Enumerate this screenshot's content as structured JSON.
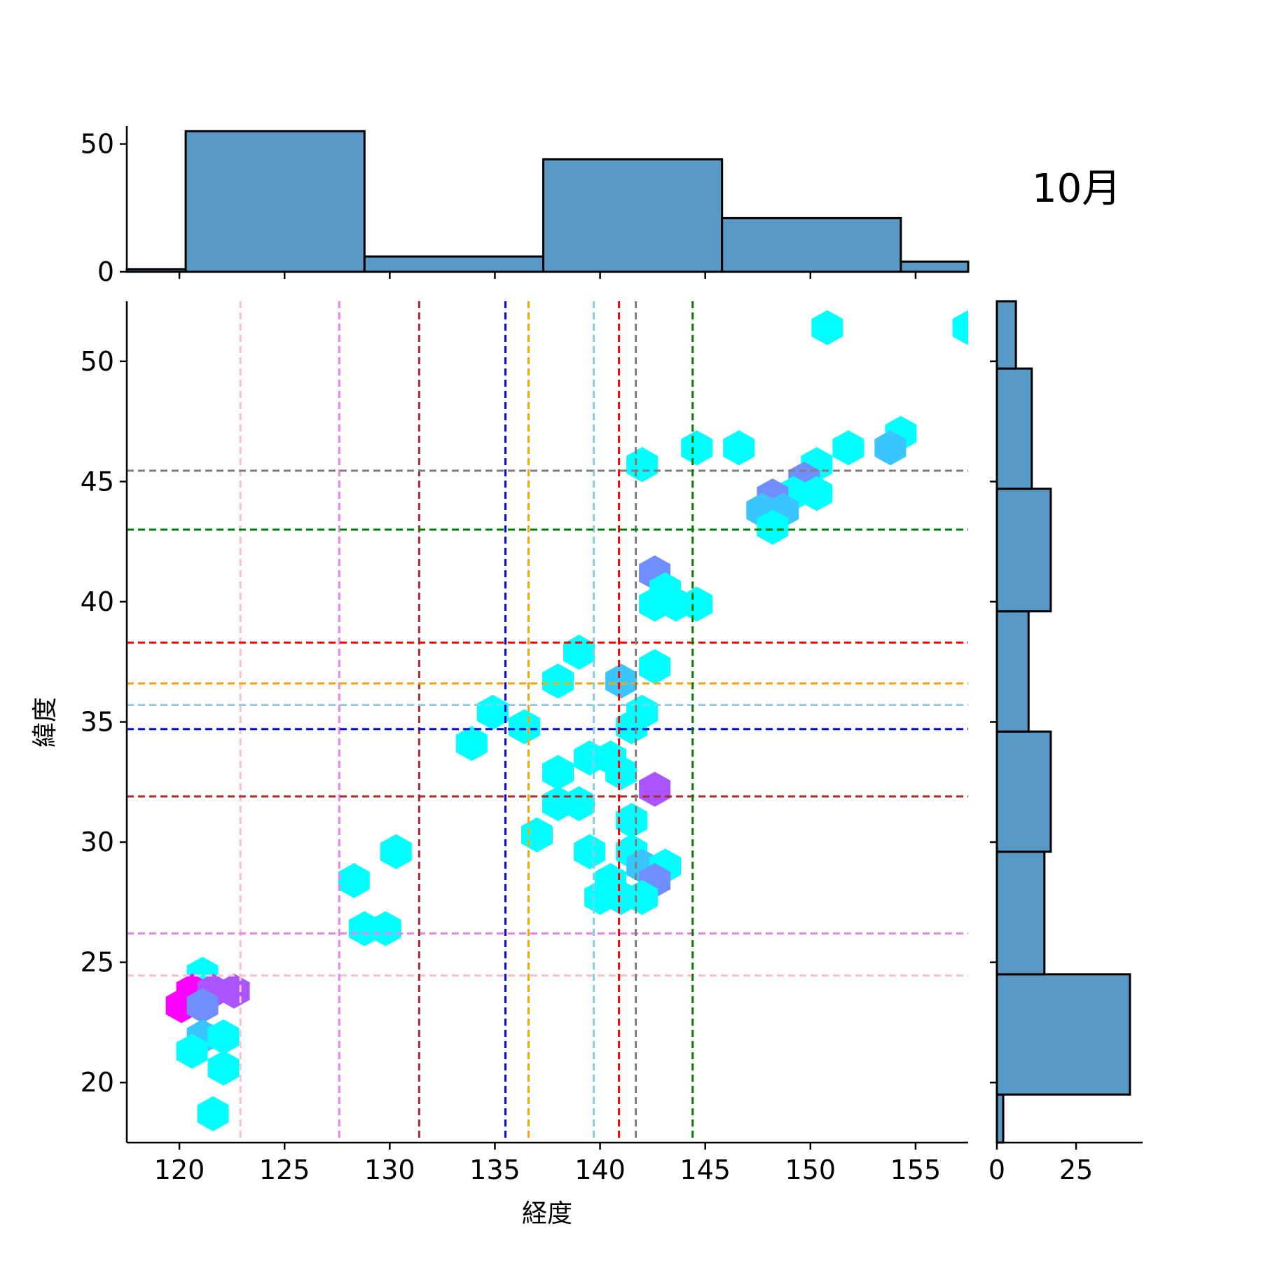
{
  "chart_data": {
    "type": "hexbin-joint",
    "annotation": "10月",
    "xlabel": "経度",
    "ylabel": "緯度",
    "xlim": [
      117.5,
      157.5
    ],
    "ylim": [
      17.5,
      52.5
    ],
    "xticks": [
      120,
      125,
      130,
      135,
      140,
      145,
      150,
      155
    ],
    "yticks": [
      20,
      25,
      30,
      35,
      40,
      45,
      50
    ],
    "top_hist": {
      "yticks": [
        0,
        50
      ],
      "ylim": [
        0,
        57
      ],
      "bins": [
        {
          "x0": 117.5,
          "x1": 120.3,
          "count": 1
        },
        {
          "x0": 120.3,
          "x1": 128.8,
          "count": 55
        },
        {
          "x0": 128.8,
          "x1": 137.3,
          "count": 6
        },
        {
          "x0": 137.3,
          "x1": 145.8,
          "count": 44
        },
        {
          "x0": 145.8,
          "x1": 154.3,
          "count": 21
        },
        {
          "x0": 154.3,
          "x1": 157.5,
          "count": 4
        }
      ]
    },
    "right_hist": {
      "xticks": [
        0,
        25
      ],
      "xlim": [
        0,
        46
      ],
      "bins": [
        {
          "y0": 17.5,
          "y1": 19.5,
          "count": 2
        },
        {
          "y0": 19.5,
          "y1": 24.5,
          "count": 42
        },
        {
          "y0": 24.5,
          "y1": 29.6,
          "count": 15
        },
        {
          "y0": 29.6,
          "y1": 34.6,
          "count": 17
        },
        {
          "y0": 34.6,
          "y1": 39.6,
          "count": 10
        },
        {
          "y0": 39.6,
          "y1": 44.7,
          "count": 17
        },
        {
          "y0": 44.7,
          "y1": 49.7,
          "count": 11
        },
        {
          "y0": 49.7,
          "y1": 52.5,
          "count": 6
        }
      ]
    },
    "reference_lines": [
      {
        "x": 122.9,
        "y": 24.45,
        "color": "#ffc0cb"
      },
      {
        "x": 127.6,
        "y": 26.2,
        "color": "#ee82ee"
      },
      {
        "x": 131.4,
        "y": 31.9,
        "color": "#a52a2a"
      },
      {
        "x": 135.5,
        "y": 34.7,
        "color": "#0000ff"
      },
      {
        "x": 136.6,
        "y": 36.6,
        "color": "#ffa500"
      },
      {
        "x": 139.7,
        "y": 35.7,
        "color": "#87ceeb"
      },
      {
        "x": 140.9,
        "y": 38.3,
        "color": "#ff0000"
      },
      {
        "x": 141.7,
        "y": 45.45,
        "color": "#808080"
      },
      {
        "x": 144.4,
        "y": 43.0,
        "color": "#008000"
      }
    ],
    "hexbins": [
      {
        "x": 150.8,
        "y": 51.4,
        "c": 1
      },
      {
        "x": 157.5,
        "y": 51.4,
        "c": 1
      },
      {
        "x": 154.3,
        "y": 47.0,
        "c": 1
      },
      {
        "x": 153.8,
        "y": 46.4,
        "c": 3
      },
      {
        "x": 151.8,
        "y": 46.4,
        "c": 1
      },
      {
        "x": 146.6,
        "y": 46.4,
        "c": 1
      },
      {
        "x": 144.6,
        "y": 46.4,
        "c": 1
      },
      {
        "x": 142.0,
        "y": 45.7,
        "c": 1
      },
      {
        "x": 150.3,
        "y": 45.7,
        "c": 1
      },
      {
        "x": 149.7,
        "y": 45.1,
        "c": 5
      },
      {
        "x": 150.3,
        "y": 44.5,
        "c": 1
      },
      {
        "x": 149.2,
        "y": 44.5,
        "c": 1
      },
      {
        "x": 148.2,
        "y": 44.4,
        "c": 5
      },
      {
        "x": 147.7,
        "y": 43.8,
        "c": 3
      },
      {
        "x": 148.7,
        "y": 43.8,
        "c": 3
      },
      {
        "x": 148.2,
        "y": 43.1,
        "c": 1
      },
      {
        "x": 142.6,
        "y": 41.2,
        "c": 5
      },
      {
        "x": 143.1,
        "y": 40.5,
        "c": 1
      },
      {
        "x": 142.6,
        "y": 39.9,
        "c": 1
      },
      {
        "x": 143.6,
        "y": 39.9,
        "c": 1
      },
      {
        "x": 144.6,
        "y": 39.9,
        "c": 1
      },
      {
        "x": 139.0,
        "y": 37.9,
        "c": 1
      },
      {
        "x": 142.6,
        "y": 37.3,
        "c": 1
      },
      {
        "x": 138.0,
        "y": 36.7,
        "c": 1
      },
      {
        "x": 141.0,
        "y": 36.7,
        "c": 3
      },
      {
        "x": 134.9,
        "y": 35.4,
        "c": 1
      },
      {
        "x": 142.0,
        "y": 35.4,
        "c": 1
      },
      {
        "x": 136.4,
        "y": 34.8,
        "c": 1
      },
      {
        "x": 141.5,
        "y": 34.8,
        "c": 1
      },
      {
        "x": 133.9,
        "y": 34.1,
        "c": 1
      },
      {
        "x": 139.5,
        "y": 33.5,
        "c": 1
      },
      {
        "x": 140.5,
        "y": 33.5,
        "c": 1
      },
      {
        "x": 138.0,
        "y": 32.9,
        "c": 1
      },
      {
        "x": 141.0,
        "y": 32.9,
        "c": 1
      },
      {
        "x": 142.6,
        "y": 32.2,
        "c": 7
      },
      {
        "x": 138.0,
        "y": 31.6,
        "c": 1
      },
      {
        "x": 139.0,
        "y": 31.6,
        "c": 1
      },
      {
        "x": 141.5,
        "y": 30.9,
        "c": 1
      },
      {
        "x": 137.0,
        "y": 30.3,
        "c": 1
      },
      {
        "x": 130.3,
        "y": 29.6,
        "c": 1
      },
      {
        "x": 139.5,
        "y": 29.6,
        "c": 1
      },
      {
        "x": 141.5,
        "y": 29.6,
        "c": 1
      },
      {
        "x": 142.0,
        "y": 29.0,
        "c": 3
      },
      {
        "x": 143.1,
        "y": 29.0,
        "c": 1
      },
      {
        "x": 128.3,
        "y": 28.4,
        "c": 1
      },
      {
        "x": 140.5,
        "y": 28.4,
        "c": 1
      },
      {
        "x": 142.6,
        "y": 28.4,
        "c": 5
      },
      {
        "x": 140.0,
        "y": 27.7,
        "c": 1
      },
      {
        "x": 141.0,
        "y": 27.7,
        "c": 1
      },
      {
        "x": 142.0,
        "y": 27.7,
        "c": 1
      },
      {
        "x": 128.8,
        "y": 26.4,
        "c": 1
      },
      {
        "x": 129.8,
        "y": 26.4,
        "c": 1
      },
      {
        "x": 121.1,
        "y": 24.5,
        "c": 1
      },
      {
        "x": 120.6,
        "y": 23.8,
        "c": 10
      },
      {
        "x": 121.6,
        "y": 23.8,
        "c": 7
      },
      {
        "x": 122.6,
        "y": 23.8,
        "c": 7
      },
      {
        "x": 120.1,
        "y": 23.2,
        "c": 10
      },
      {
        "x": 121.1,
        "y": 23.2,
        "c": 5
      },
      {
        "x": 121.1,
        "y": 21.9,
        "c": 3
      },
      {
        "x": 122.1,
        "y": 21.9,
        "c": 1
      },
      {
        "x": 120.6,
        "y": 21.3,
        "c": 1
      },
      {
        "x": 122.1,
        "y": 20.6,
        "c": 1
      },
      {
        "x": 121.6,
        "y": 18.7,
        "c": 1
      }
    ]
  }
}
